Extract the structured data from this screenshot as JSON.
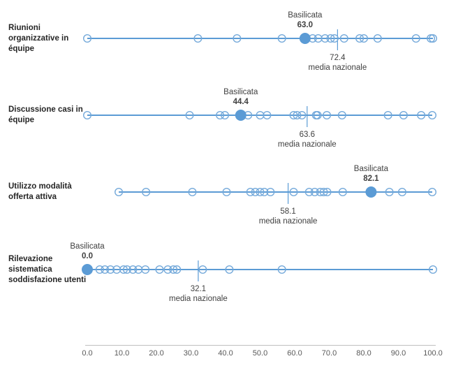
{
  "chart_data": {
    "type": "scatter",
    "title": "",
    "x_axis": {
      "min": 0,
      "max": 100,
      "tick_labels": [
        "0.0",
        "10.0",
        "20.0",
        "30.0",
        "40.0",
        "50.0",
        "60.0",
        "70.0",
        "80.0",
        "90.0",
        "100.0"
      ],
      "grid": false
    },
    "legend": "none",
    "rows": [
      {
        "label": "Riunioni organizzative in équipe",
        "highlight": {
          "name": "Basilicata",
          "value": 63.0,
          "value_label": "63.0"
        },
        "mean": {
          "value": 72.4,
          "value_label": "72.4",
          "caption": "media nazionale"
        },
        "points": [
          0.0,
          32.0,
          43.3,
          56.3,
          65.2,
          66.8,
          68.8,
          70.4,
          71.5,
          74.3,
          78.8,
          80.0,
          84.0,
          95.1,
          99.4,
          100.0
        ]
      },
      {
        "label": "Discussione casi in équipe",
        "highlight": {
          "name": "Basilicata",
          "value": 44.4,
          "value_label": "44.4"
        },
        "mean": {
          "value": 63.6,
          "value_label": "63.6",
          "caption": "media nazionale"
        },
        "points": [
          0.0,
          29.6,
          38.4,
          39.8,
          46.5,
          50.0,
          52.0,
          59.7,
          60.7,
          62.1,
          66.2,
          66.6,
          69.3,
          73.7,
          87.0,
          91.5,
          96.6,
          99.8
        ]
      },
      {
        "label": "Utilizzo modalità offerta attiva",
        "highlight": {
          "name": "Basilicata",
          "value": 82.1,
          "value_label": "82.1"
        },
        "mean": {
          "value": 58.1,
          "value_label": "58.1",
          "caption": "media nazionale"
        },
        "points": [
          9.1,
          17.0,
          30.4,
          40.3,
          47.2,
          48.6,
          50.0,
          51.2,
          53.0,
          59.7,
          64.2,
          65.8,
          67.4,
          68.4,
          69.4,
          73.9,
          87.4,
          91.1,
          99.8
        ]
      },
      {
        "label": "Rilevazione sistematica soddisfazione utenti",
        "highlight": {
          "name": "Basilicata",
          "value": 0.0,
          "value_label": "0.0"
        },
        "mean": {
          "value": 32.1,
          "value_label": "32.1",
          "caption": "media nazionale"
        },
        "points": [
          3.6,
          5.1,
          6.7,
          8.5,
          10.5,
          11.5,
          13.2,
          14.8,
          16.8,
          20.9,
          23.3,
          24.9,
          25.9,
          33.4,
          41.1,
          56.3,
          100.0
        ]
      }
    ],
    "colors": {
      "series": "#5B9BD5",
      "marker_stroke": "#74A9DA",
      "mean_tick": "#5B9BD5",
      "axis_line": "#BFBFBF",
      "axis_text": "#595959",
      "annotation_text": "#404040",
      "row_label_text": "#262626"
    }
  }
}
